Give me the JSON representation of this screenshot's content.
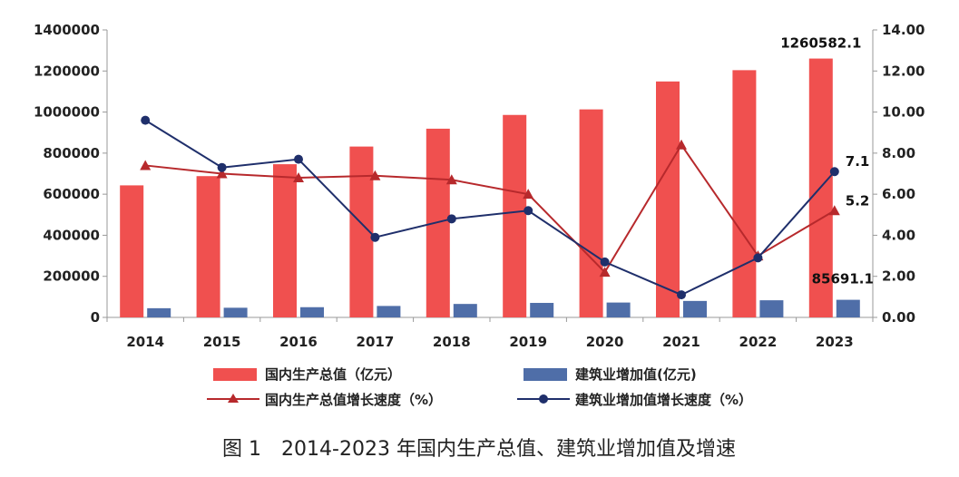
{
  "chart_data": {
    "type": "bar",
    "categories": [
      "2014",
      "2015",
      "2016",
      "2017",
      "2018",
      "2019",
      "2020",
      "2021",
      "2022",
      "2023"
    ],
    "series": [
      {
        "name": "国内生产总值（亿元）",
        "kind": "bar",
        "axis": "left",
        "color": "#f0504f",
        "values": [
          643000,
          688000,
          746000,
          832000,
          919000,
          986000,
          1013000,
          1149000,
          1204000,
          1260582.1
        ]
      },
      {
        "name": "建筑业增加值(亿元)",
        "kind": "bar",
        "axis": "left",
        "color": "#4f6ea8",
        "values": [
          44700,
          47000,
          49700,
          55700,
          65500,
          70600,
          72400,
          80100,
          83400,
          85691.1
        ]
      },
      {
        "name": "国内生产总值增长速度（%）",
        "kind": "line",
        "axis": "right",
        "color": "#b7292c",
        "marker": "triangle",
        "values": [
          7.4,
          7.0,
          6.8,
          6.9,
          6.7,
          6.0,
          2.2,
          8.4,
          3.0,
          5.2
        ]
      },
      {
        "name": "建筑业增加值增长速度（%）",
        "kind": "line",
        "axis": "right",
        "color": "#1f2f6b",
        "marker": "circle",
        "values": [
          9.6,
          7.3,
          7.7,
          3.9,
          4.8,
          5.2,
          2.7,
          1.1,
          2.9,
          7.1
        ]
      }
    ],
    "y_left": {
      "lim": [
        0,
        1400000
      ],
      "ticks": [
        "0",
        "200000",
        "400000",
        "600000",
        "800000",
        "1000000",
        "1200000",
        "1400000"
      ]
    },
    "y_right": {
      "lim": [
        0,
        14
      ],
      "ticks": [
        "0.00",
        "2.00",
        "4.00",
        "6.00",
        "8.00",
        "10.00",
        "12.00",
        "14.00"
      ]
    },
    "annotations": {
      "gdp_last": "1260582.1",
      "constr_last": "85691.1",
      "constr_growth_last": "7.1",
      "gdp_growth_last": "5.2"
    },
    "legend_position": "bottom",
    "grid": false,
    "caption": "图 1　2014-2023 年国内生产总值、建筑业增加值及增速"
  }
}
